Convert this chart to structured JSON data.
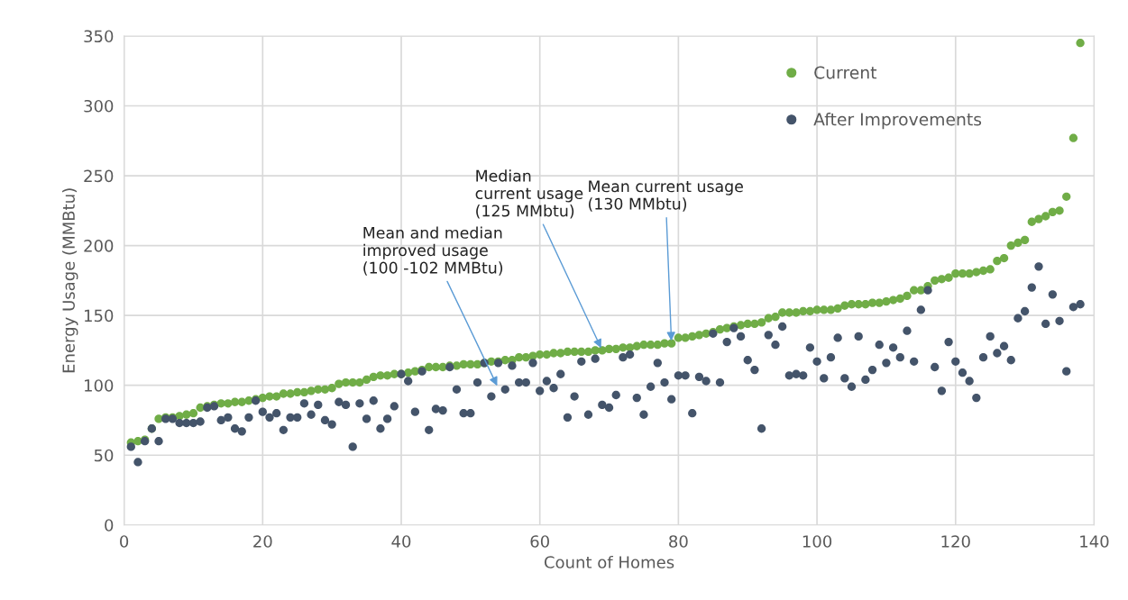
{
  "chart_data": {
    "type": "scatter",
    "xlabel": "Count of Homes",
    "ylabel": "Energy Usage (MMBtu)",
    "x": [
      1,
      2,
      3,
      4,
      5,
      6,
      7,
      8,
      9,
      10,
      11,
      12,
      13,
      14,
      15,
      16,
      17,
      18,
      19,
      20,
      21,
      22,
      23,
      24,
      25,
      26,
      27,
      28,
      29,
      30,
      31,
      32,
      33,
      34,
      35,
      36,
      37,
      38,
      39,
      40,
      41,
      42,
      43,
      44,
      45,
      46,
      47,
      48,
      49,
      50,
      51,
      52,
      53,
      54,
      55,
      56,
      57,
      58,
      59,
      60,
      61,
      62,
      63,
      64,
      65,
      66,
      67,
      68,
      69,
      70,
      71,
      72,
      73,
      74,
      75,
      76,
      77,
      78,
      79,
      80,
      81,
      82,
      83,
      84,
      85,
      86,
      87,
      88,
      89,
      90,
      91,
      92,
      93,
      94,
      95,
      96,
      97,
      98,
      99,
      100,
      101,
      102,
      103,
      104,
      105,
      106,
      107,
      108,
      109,
      110,
      111,
      112,
      113,
      114,
      115,
      116,
      117,
      118,
      119,
      120,
      121,
      122,
      123,
      124,
      125,
      126,
      127,
      128,
      129,
      130,
      131,
      132,
      133,
      134,
      135,
      136,
      137,
      138
    ],
    "series": [
      {
        "name": "Current",
        "color": "#70ad47",
        "values": [
          59,
          60,
          61,
          69,
          76,
          77,
          77,
          78,
          79,
          80,
          84,
          85,
          86,
          87,
          87,
          88,
          88,
          89,
          90,
          91,
          92,
          92,
          94,
          94,
          95,
          95,
          96,
          97,
          97,
          98,
          101,
          102,
          102,
          102,
          104,
          106,
          107,
          107,
          108,
          108,
          109,
          110,
          111,
          113,
          113,
          113,
          114,
          114,
          115,
          115,
          115,
          116,
          117,
          117,
          118,
          118,
          120,
          120,
          121,
          122,
          122,
          123,
          123,
          124,
          124,
          124,
          124,
          125,
          125,
          126,
          126,
          127,
          127,
          128,
          129,
          129,
          129,
          130,
          130,
          134,
          134,
          135,
          136,
          137,
          138,
          140,
          141,
          142,
          143,
          144,
          144,
          145,
          148,
          149,
          152,
          152,
          152,
          153,
          153,
          154,
          154,
          154,
          155,
          157,
          158,
          158,
          158,
          159,
          159,
          160,
          161,
          162,
          164,
          168,
          168,
          171,
          175,
          176,
          177,
          180,
          180,
          180,
          181,
          182,
          183,
          189,
          191,
          200,
          202,
          204,
          217,
          219,
          221,
          224,
          225,
          235,
          277,
          345
        ]
      },
      {
        "name": "After Improvements",
        "color": "#44546a",
        "values": [
          56,
          45,
          60,
          69,
          60,
          76,
          76,
          73,
          73,
          73,
          74,
          84,
          85,
          75,
          77,
          69,
          67,
          77,
          89,
          81,
          77,
          80,
          68,
          77,
          77,
          87,
          79,
          86,
          75,
          72,
          88,
          86,
          56,
          87,
          76,
          89,
          69,
          76,
          85,
          108,
          103,
          81,
          110,
          68,
          83,
          82,
          113,
          97,
          80,
          80,
          102,
          116,
          92,
          116,
          97,
          114,
          102,
          102,
          116,
          96,
          103,
          98,
          108,
          77,
          92,
          117,
          79,
          119,
          86,
          84,
          93,
          120,
          122,
          91,
          79,
          99,
          116,
          102,
          90,
          107,
          107,
          80,
          106,
          103,
          137,
          102,
          131,
          141,
          135,
          118,
          111,
          69,
          136,
          129,
          142,
          107,
          108,
          107,
          127,
          117,
          105,
          120,
          134,
          105,
          99,
          135,
          104,
          111,
          129,
          116,
          127,
          120,
          139,
          117,
          154,
          168,
          113,
          96,
          131,
          117,
          109,
          103,
          91,
          120,
          135,
          123,
          128,
          118,
          148,
          153,
          170,
          185,
          144,
          165,
          146,
          110,
          156,
          158
        ]
      }
    ],
    "xlim": [
      0,
      140
    ],
    "xticks": [
      0,
      20,
      40,
      60,
      80,
      100,
      120,
      140
    ],
    "ylim": [
      0,
      350
    ],
    "yticks": [
      0,
      50,
      100,
      150,
      200,
      250,
      300,
      350
    ],
    "grid": true,
    "legend": "top right",
    "marker": "circle",
    "annotations": [
      {
        "text": "Mean and median\nimproved usage\n(100 -102 MMBtu)",
        "x": 54,
        "y": 98
      },
      {
        "text": "Median\ncurrent usage\n(125 MMbtu)",
        "x": 69,
        "y": 125
      },
      {
        "text": "Mean current usage\n(130 MMbtu)",
        "x": 79,
        "y": 130
      }
    ]
  }
}
